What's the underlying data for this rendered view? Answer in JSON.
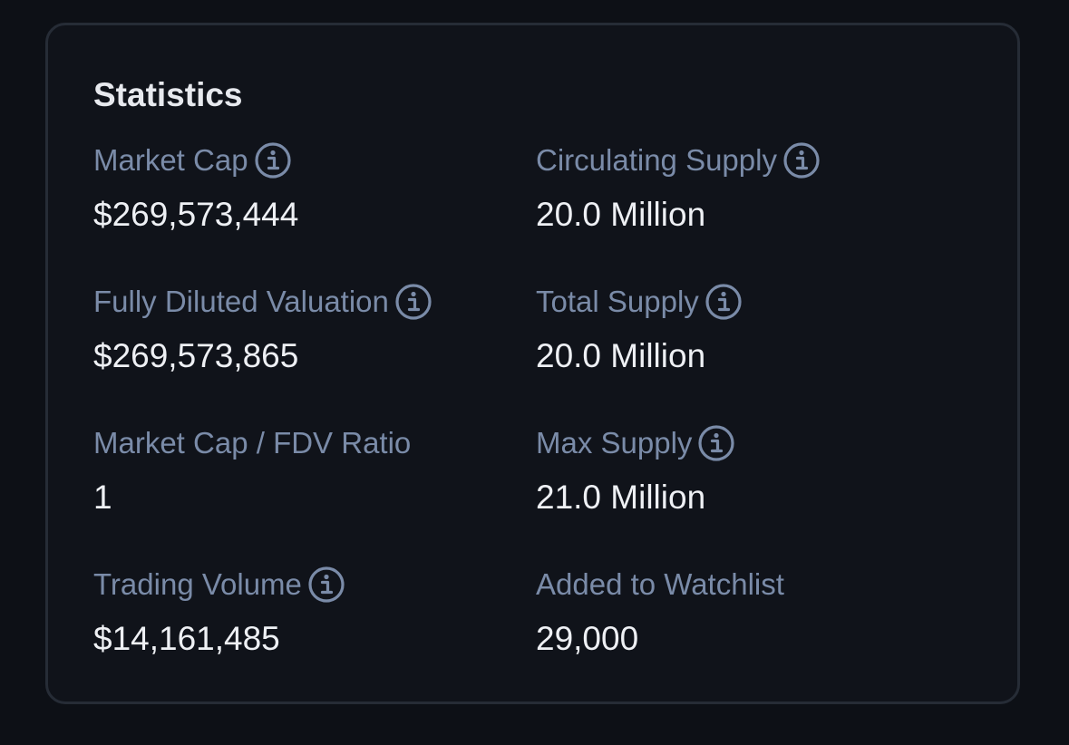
{
  "title": "Statistics",
  "colors": {
    "background": "#0d1016",
    "card": "#10131a",
    "border": "#262c36",
    "label": "#7a8ba8",
    "value": "#eef0f4"
  },
  "stats": [
    {
      "label": "Market Cap",
      "value": "$269,573,444",
      "icon": "info-icon"
    },
    {
      "label": "Circulating Supply",
      "value": "20.0 Million",
      "icon": "info-icon"
    },
    {
      "label": "Fully Diluted Valuation",
      "value": "$269,573,865",
      "icon": "info-icon"
    },
    {
      "label": "Total Supply",
      "value": "20.0 Million",
      "icon": "info-icon"
    },
    {
      "label": "Market Cap / FDV Ratio",
      "value": "1",
      "icon": ""
    },
    {
      "label": "Max Supply",
      "value": "21.0 Million",
      "icon": "info-icon"
    },
    {
      "label": "Trading Volume",
      "value": "$14,161,485",
      "icon": "info-icon"
    },
    {
      "label": "Added to Watchlist",
      "value": "29,000",
      "icon": ""
    }
  ]
}
